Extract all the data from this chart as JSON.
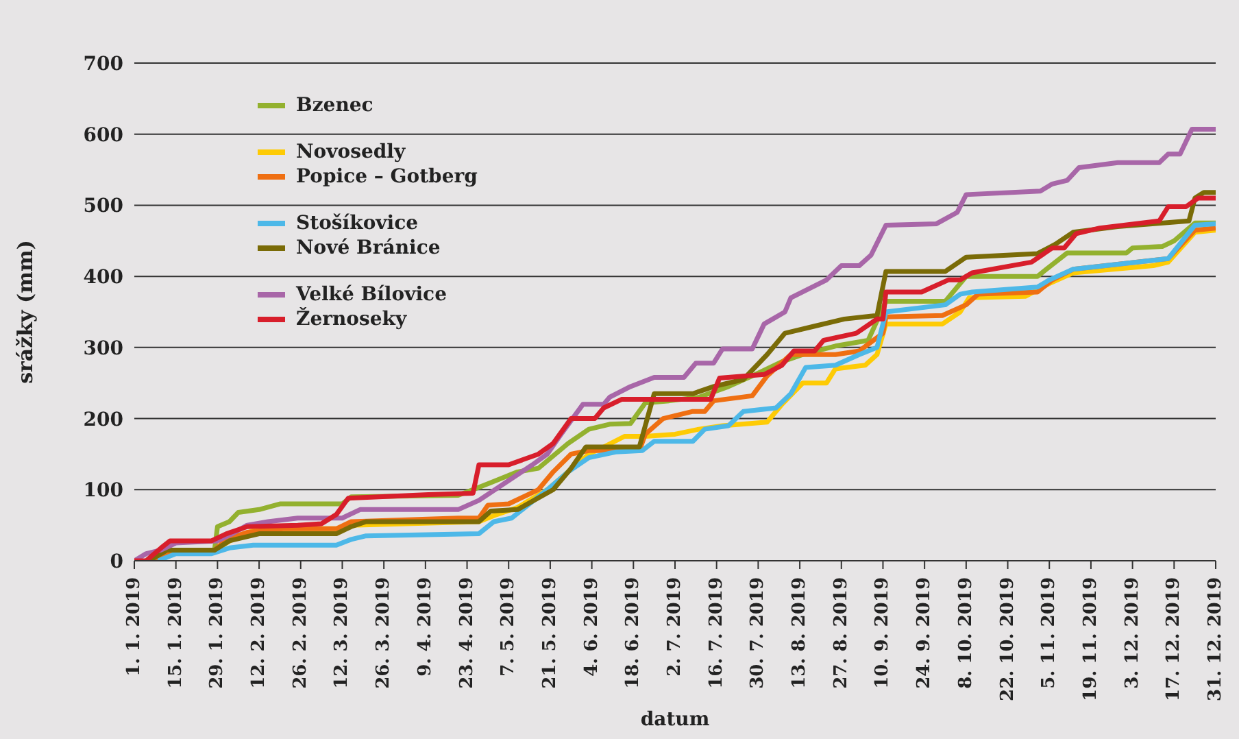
{
  "chart_data": {
    "type": "line",
    "xlabel": "datum",
    "ylabel": "srážky (mm)",
    "xlim": [
      "2019-01-01",
      "2019-12-31"
    ],
    "ylim": [
      0,
      700
    ],
    "yticks": [
      0,
      100,
      200,
      300,
      400,
      500,
      600,
      700
    ],
    "xticks": [
      {
        "value": "2019-01-01",
        "label": "1. 1. 2019"
      },
      {
        "value": "2019-01-15",
        "label": "15. 1. 2019"
      },
      {
        "value": "2019-01-29",
        "label": "29. 1. 2019"
      },
      {
        "value": "2019-02-12",
        "label": "12. 2. 2019"
      },
      {
        "value": "2019-02-26",
        "label": "26. 2. 2019"
      },
      {
        "value": "2019-03-12",
        "label": "12. 3. 2019"
      },
      {
        "value": "2019-03-26",
        "label": "26. 3. 2019"
      },
      {
        "value": "2019-04-09",
        "label": "9. 4. 2019"
      },
      {
        "value": "2019-04-23",
        "label": "23. 4. 2019"
      },
      {
        "value": "2019-05-07",
        "label": "7. 5. 2019"
      },
      {
        "value": "2019-05-21",
        "label": "21. 5. 2019"
      },
      {
        "value": "2019-06-04",
        "label": "4. 6. 2019"
      },
      {
        "value": "2019-06-18",
        "label": "18. 6. 2019"
      },
      {
        "value": "2019-07-02",
        "label": "2. 7. 2019"
      },
      {
        "value": "2019-07-16",
        "label": "16. 7. 2019"
      },
      {
        "value": "2019-07-30",
        "label": "30. 7. 2019"
      },
      {
        "value": "2019-08-13",
        "label": "13. 8. 2019"
      },
      {
        "value": "2019-08-27",
        "label": "27. 8. 2019"
      },
      {
        "value": "2019-09-10",
        "label": "10. 9. 2019"
      },
      {
        "value": "2019-09-24",
        "label": "24. 9. 2019"
      },
      {
        "value": "2019-10-08",
        "label": "8. 10. 2019"
      },
      {
        "value": "2019-10-22",
        "label": "22. 10. 2019"
      },
      {
        "value": "2019-11-05",
        "label": "5. 11. 2019"
      },
      {
        "value": "2019-11-19",
        "label": "19. 11. 2019"
      },
      {
        "value": "2019-12-03",
        "label": "3. 12. 2019"
      },
      {
        "value": "2019-12-17",
        "label": "17. 12. 2019"
      },
      {
        "value": "2019-12-31",
        "label": "31. 12. 2019"
      }
    ],
    "grid": "y",
    "legend": "top left",
    "marker": "none",
    "line_style": "solid",
    "series": [
      {
        "name": "Bzenec",
        "color": "#93b12f",
        "x": [
          "2019-01-07",
          "2019-01-12",
          "2019-01-28",
          "2019-01-29",
          "2019-02-02",
          "2019-02-05",
          "2019-02-12",
          "2019-02-19",
          "2019-03-12",
          "2019-03-15",
          "2019-04-20",
          "2019-04-25",
          "2019-05-01",
          "2019-05-10",
          "2019-05-17",
          "2019-05-27",
          "2019-06-03",
          "2019-06-10",
          "2019-06-17",
          "2019-06-22",
          "2019-06-30",
          "2019-07-10",
          "2019-07-20",
          "2019-07-28",
          "2019-08-07",
          "2019-08-14",
          "2019-08-25",
          "2019-09-05",
          "2019-09-11",
          "2019-10-01",
          "2019-10-03",
          "2019-10-08",
          "2019-11-01",
          "2019-11-04",
          "2019-11-11",
          "2019-12-01",
          "2019-12-03",
          "2019-12-13",
          "2019-12-17",
          "2019-12-24",
          "2019-12-31"
        ],
        "values": [
          0,
          10,
          15,
          48,
          55,
          68,
          72,
          80,
          80,
          90,
          92,
          100,
          110,
          125,
          130,
          165,
          185,
          192,
          193,
          222,
          225,
          230,
          245,
          260,
          280,
          290,
          302,
          310,
          365,
          365,
          375,
          400,
          400,
          410,
          433,
          433,
          440,
          442,
          450,
          475,
          475
        ]
      },
      {
        "name": "Novosedly",
        "color": "#fecb05",
        "x": [
          "2019-01-08",
          "2019-01-13",
          "2019-01-28",
          "2019-02-05",
          "2019-02-12",
          "2019-03-10",
          "2019-03-15",
          "2019-04-27",
          "2019-05-03",
          "2019-05-10",
          "2019-05-20",
          "2019-05-27",
          "2019-06-03",
          "2019-06-08",
          "2019-06-15",
          "2019-06-22",
          "2019-07-02",
          "2019-07-10",
          "2019-07-18",
          "2019-08-02",
          "2019-08-07",
          "2019-08-14",
          "2019-08-22",
          "2019-08-25",
          "2019-09-04",
          "2019-09-08",
          "2019-09-11",
          "2019-09-30",
          "2019-10-06",
          "2019-10-09",
          "2019-10-28",
          "2019-11-05",
          "2019-11-13",
          "2019-12-10",
          "2019-12-15",
          "2019-12-24",
          "2019-12-31"
        ],
        "values": [
          0,
          10,
          15,
          35,
          45,
          45,
          50,
          55,
          65,
          75,
          100,
          125,
          150,
          160,
          175,
          175,
          178,
          185,
          190,
          195,
          220,
          250,
          250,
          270,
          275,
          290,
          333,
          333,
          350,
          370,
          372,
          390,
          405,
          415,
          420,
          462,
          465
        ]
      },
      {
        "name": "Popice – Gotberg",
        "color": "#ef6f12",
        "x": [
          "2019-01-07",
          "2019-01-12",
          "2019-01-28",
          "2019-02-01",
          "2019-02-08",
          "2019-02-20",
          "2019-03-10",
          "2019-03-15",
          "2019-04-20",
          "2019-04-27",
          "2019-04-30",
          "2019-05-07",
          "2019-05-17",
          "2019-05-22",
          "2019-05-28",
          "2019-06-03",
          "2019-06-20",
          "2019-06-22",
          "2019-06-28",
          "2019-07-08",
          "2019-07-12",
          "2019-07-15",
          "2019-07-28",
          "2019-08-02",
          "2019-08-10",
          "2019-08-25",
          "2019-09-02",
          "2019-09-10",
          "2019-09-11",
          "2019-09-30",
          "2019-10-08",
          "2019-10-12",
          "2019-11-01",
          "2019-11-06",
          "2019-11-13",
          "2019-12-15",
          "2019-12-24",
          "2019-12-31"
        ],
        "values": [
          0,
          10,
          15,
          30,
          40,
          45,
          45,
          55,
          60,
          60,
          78,
          80,
          100,
          125,
          150,
          155,
          155,
          178,
          200,
          210,
          210,
          225,
          232,
          260,
          290,
          290,
          295,
          320,
          343,
          345,
          360,
          375,
          378,
          395,
          410,
          425,
          465,
          468
        ]
      },
      {
        "name": "Stošíkovice",
        "color": "#4db8e8",
        "x": [
          "2019-01-09",
          "2019-01-15",
          "2019-01-27",
          "2019-02-02",
          "2019-02-10",
          "2019-03-10",
          "2019-03-15",
          "2019-03-20",
          "2019-04-27",
          "2019-05-02",
          "2019-05-08",
          "2019-05-20",
          "2019-05-27",
          "2019-06-03",
          "2019-06-12",
          "2019-06-21",
          "2019-06-25",
          "2019-07-08",
          "2019-07-12",
          "2019-07-20",
          "2019-07-25",
          "2019-08-05",
          "2019-08-10",
          "2019-08-15",
          "2019-08-25",
          "2019-09-02",
          "2019-09-08",
          "2019-09-11",
          "2019-10-01",
          "2019-10-06",
          "2019-10-10",
          "2019-11-01",
          "2019-11-05",
          "2019-11-13",
          "2019-12-15",
          "2019-12-24",
          "2019-12-31"
        ],
        "values": [
          0,
          10,
          10,
          18,
          22,
          22,
          30,
          35,
          38,
          55,
          60,
          100,
          125,
          145,
          153,
          155,
          168,
          168,
          185,
          190,
          210,
          215,
          235,
          272,
          275,
          290,
          300,
          350,
          360,
          375,
          378,
          385,
          395,
          410,
          425,
          472,
          474
        ]
      },
      {
        "name": "Nové Bránice",
        "color": "#7a6b07",
        "x": [
          "2019-01-06",
          "2019-01-12",
          "2019-01-28",
          "2019-02-02",
          "2019-02-12",
          "2019-03-10",
          "2019-03-15",
          "2019-03-20",
          "2019-04-27",
          "2019-05-01",
          "2019-05-10",
          "2019-05-22",
          "2019-05-28",
          "2019-06-02",
          "2019-06-20",
          "2019-06-25",
          "2019-07-08",
          "2019-07-15",
          "2019-07-25",
          "2019-08-02",
          "2019-08-08",
          "2019-08-18",
          "2019-08-28",
          "2019-09-08",
          "2019-09-11",
          "2019-10-01",
          "2019-10-08",
          "2019-11-01",
          "2019-11-07",
          "2019-11-13",
          "2019-11-28",
          "2019-12-22",
          "2019-12-24",
          "2019-12-27",
          "2019-12-31"
        ],
        "values": [
          0,
          15,
          15,
          28,
          38,
          38,
          48,
          55,
          55,
          70,
          72,
          100,
          130,
          160,
          160,
          235,
          235,
          245,
          255,
          290,
          320,
          330,
          340,
          345,
          407,
          407,
          427,
          432,
          445,
          462,
          470,
          478,
          510,
          518,
          518
        ]
      },
      {
        "name": "Velké Bílovice",
        "color": "#a866a8",
        "x": [
          "2019-01-01",
          "2019-01-05",
          "2019-01-10",
          "2019-01-15",
          "2019-01-29",
          "2019-02-03",
          "2019-02-08",
          "2019-02-15",
          "2019-02-25",
          "2019-03-12",
          "2019-03-18",
          "2019-04-20",
          "2019-04-27",
          "2019-05-15",
          "2019-05-20",
          "2019-05-25",
          "2019-06-01",
          "2019-06-08",
          "2019-06-10",
          "2019-06-17",
          "2019-06-25",
          "2019-07-05",
          "2019-07-09",
          "2019-07-15",
          "2019-07-18",
          "2019-07-28",
          "2019-08-01",
          "2019-08-08",
          "2019-08-10",
          "2019-08-22",
          "2019-08-27",
          "2019-09-02",
          "2019-09-06",
          "2019-09-11",
          "2019-09-28",
          "2019-10-05",
          "2019-10-08",
          "2019-11-02",
          "2019-11-06",
          "2019-11-11",
          "2019-11-15",
          "2019-11-28",
          "2019-12-12",
          "2019-12-15",
          "2019-12-19",
          "2019-12-23",
          "2019-12-31"
        ],
        "values": [
          0,
          10,
          15,
          25,
          28,
          38,
          50,
          55,
          60,
          60,
          72,
          72,
          85,
          135,
          150,
          180,
          220,
          220,
          230,
          245,
          258,
          258,
          278,
          278,
          298,
          298,
          333,
          350,
          370,
          395,
          415,
          415,
          430,
          472,
          474,
          490,
          515,
          520,
          530,
          535,
          553,
          560,
          560,
          572,
          572,
          607,
          607
        ]
      },
      {
        "name": "Žernoseky",
        "color": "#d81e2b",
        "x": [
          "2019-01-01",
          "2019-01-05",
          "2019-01-10",
          "2019-01-13",
          "2019-01-27",
          "2019-02-01",
          "2019-02-08",
          "2019-02-25",
          "2019-03-05",
          "2019-03-10",
          "2019-03-14",
          "2019-04-10",
          "2019-04-25",
          "2019-04-27",
          "2019-05-07",
          "2019-05-17",
          "2019-05-22",
          "2019-05-28",
          "2019-06-05",
          "2019-06-08",
          "2019-06-14",
          "2019-07-14",
          "2019-07-17",
          "2019-08-01",
          "2019-08-07",
          "2019-08-11",
          "2019-08-18",
          "2019-08-21",
          "2019-09-01",
          "2019-09-08",
          "2019-09-10",
          "2019-09-11",
          "2019-09-23",
          "2019-10-02",
          "2019-10-06",
          "2019-10-10",
          "2019-10-30",
          "2019-11-06",
          "2019-11-10",
          "2019-11-14",
          "2019-11-22",
          "2019-12-12",
          "2019-12-15",
          "2019-12-21",
          "2019-12-25",
          "2019-12-31"
        ],
        "values": [
          0,
          0,
          18,
          28,
          28,
          38,
          48,
          50,
          52,
          65,
          88,
          93,
          95,
          135,
          135,
          150,
          165,
          200,
          200,
          215,
          227,
          227,
          257,
          262,
          275,
          295,
          295,
          310,
          320,
          340,
          340,
          378,
          378,
          395,
          395,
          405,
          420,
          440,
          440,
          460,
          468,
          478,
          498,
          498,
          510,
          510
        ]
      }
    ]
  }
}
